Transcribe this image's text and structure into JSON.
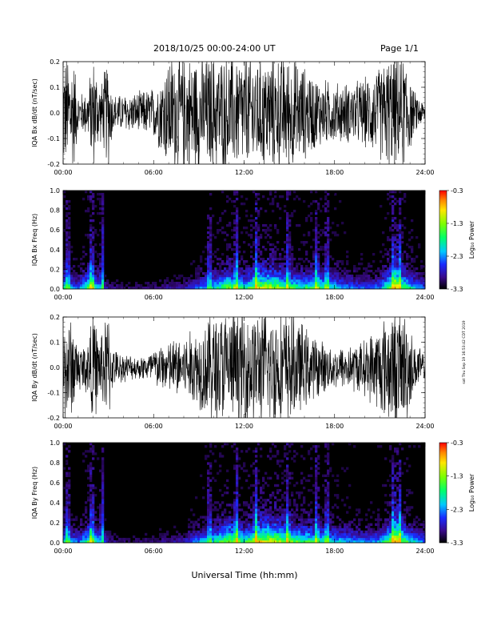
{
  "header": {
    "title": "2018/10/25  00:00-24:00 UT",
    "page": "Page 1/1"
  },
  "footer": {
    "xlabel": "Universal Time (hh:mm)",
    "stamp": "sat Thu Sep 19 16:53:42 CDT 2019"
  },
  "chart_data": [
    {
      "type": "line",
      "ylabel": "IQA Bx dB/dt (nT/sec)",
      "xlabel": "",
      "xlim_hours": [
        0,
        24
      ],
      "x_ticks": [
        "00:00",
        "06:00",
        "12:00",
        "18:00",
        "24:00"
      ],
      "ylim": [
        -0.2,
        0.2
      ],
      "y_ticks": [
        "0.2",
        "0.1",
        "0.0",
        "-0.1",
        "-0.2"
      ],
      "envelope": [
        {
          "hour": 0,
          "amp": 0.25
        },
        {
          "hour": 0.7,
          "amp": 0.25
        },
        {
          "hour": 1,
          "amp": 0.08
        },
        {
          "hour": 1.6,
          "amp": 0.1
        },
        {
          "hour": 2,
          "amp": 0.25
        },
        {
          "hour": 2.5,
          "amp": 0.12
        },
        {
          "hour": 3,
          "amp": 0.25
        },
        {
          "hour": 3.3,
          "amp": 0.08
        },
        {
          "hour": 4,
          "amp": 0.08
        },
        {
          "hour": 5,
          "amp": 0.09
        },
        {
          "hour": 5.5,
          "amp": 0.1
        },
        {
          "hour": 6,
          "amp": 0.11
        },
        {
          "hour": 6.5,
          "amp": 0.17
        },
        {
          "hour": 7,
          "amp": 0.25
        },
        {
          "hour": 8,
          "amp": 0.25
        },
        {
          "hour": 9,
          "amp": 0.25
        },
        {
          "hour": 10,
          "amp": 0.25
        },
        {
          "hour": 11,
          "amp": 0.25
        },
        {
          "hour": 12,
          "amp": 0.25
        },
        {
          "hour": 13,
          "amp": 0.25
        },
        {
          "hour": 14,
          "amp": 0.25
        },
        {
          "hour": 15,
          "amp": 0.25
        },
        {
          "hour": 16,
          "amp": 0.2
        },
        {
          "hour": 17,
          "amp": 0.15
        },
        {
          "hour": 18,
          "amp": 0.13
        },
        {
          "hour": 19,
          "amp": 0.13
        },
        {
          "hour": 20,
          "amp": 0.15
        },
        {
          "hour": 21,
          "amp": 0.2
        },
        {
          "hour": 21.6,
          "amp": 0.25
        },
        {
          "hour": 22.8,
          "amp": 0.25
        },
        {
          "hour": 23.2,
          "amp": 0.1
        },
        {
          "hour": 24,
          "amp": 0.04
        }
      ]
    },
    {
      "type": "heatmap",
      "ylabel": "IQA Bx Freq (Hz)",
      "xlim_hours": [
        0,
        24
      ],
      "x_ticks": [
        "00:00",
        "06:00",
        "12:00",
        "18:00",
        "24:00"
      ],
      "ylim": [
        0,
        1
      ],
      "y_ticks": [
        "1.0",
        "0.8",
        "0.6",
        "0.4",
        "0.2",
        "0.0"
      ],
      "colorbar": {
        "label": "Log₁₀ Power",
        "min": -3.3,
        "max": -0.3,
        "ticks": [
          "-0.3",
          "-1.3",
          "-2.3",
          "-3.3"
        ]
      },
      "activity": [
        {
          "hour": 0,
          "level": 0.55
        },
        {
          "hour": 1,
          "level": 0.3
        },
        {
          "hour": 1.8,
          "level": 0.7
        },
        {
          "hour": 2.5,
          "level": 0.35
        },
        {
          "hour": 3,
          "level": 0.15
        },
        {
          "hour": 4,
          "level": 0.1
        },
        {
          "hour": 5,
          "level": 0.1
        },
        {
          "hour": 6,
          "level": 0.12
        },
        {
          "hour": 7,
          "level": 0.15
        },
        {
          "hour": 8,
          "level": 0.15
        },
        {
          "hour": 9,
          "level": 0.35
        },
        {
          "hour": 10,
          "level": 0.45
        },
        {
          "hour": 11,
          "level": 0.7
        },
        {
          "hour": 12,
          "level": 0.5
        },
        {
          "hour": 13,
          "level": 0.75
        },
        {
          "hour": 14,
          "level": 0.75
        },
        {
          "hour": 15,
          "level": 0.6
        },
        {
          "hour": 16,
          "level": 0.55
        },
        {
          "hour": 17,
          "level": 0.6
        },
        {
          "hour": 18,
          "level": 0.45
        },
        {
          "hour": 19,
          "level": 0.35
        },
        {
          "hour": 20,
          "level": 0.3
        },
        {
          "hour": 21,
          "level": 0.35
        },
        {
          "hour": 22,
          "level": 0.85
        },
        {
          "hour": 23,
          "level": 0.5
        },
        {
          "hour": 24,
          "level": 0.3
        }
      ],
      "bursts_hours": [
        0.3,
        1.9,
        2.6,
        9.7,
        11.5,
        12.8,
        14.9,
        16.8,
        17.5,
        21.9,
        22.3
      ]
    },
    {
      "type": "line",
      "ylabel": "IQA By dB/dt (nT/sec)",
      "xlabel": "",
      "xlim_hours": [
        0,
        24
      ],
      "x_ticks": [
        "00:00",
        "06:00",
        "12:00",
        "18:00",
        "24:00"
      ],
      "ylim": [
        -0.2,
        0.2
      ],
      "y_ticks": [
        "0.2",
        "0.1",
        "0.0",
        "-0.1",
        "-0.2"
      ],
      "envelope": [
        {
          "hour": 0,
          "amp": 0.25
        },
        {
          "hour": 0.7,
          "amp": 0.2
        },
        {
          "hour": 1,
          "amp": 0.1
        },
        {
          "hour": 1.6,
          "amp": 0.12
        },
        {
          "hour": 2,
          "amp": 0.25
        },
        {
          "hour": 2.4,
          "amp": 0.14
        },
        {
          "hour": 3,
          "amp": 0.25
        },
        {
          "hour": 3.3,
          "amp": 0.08
        },
        {
          "hour": 4,
          "amp": 0.06
        },
        {
          "hour": 5,
          "amp": 0.05
        },
        {
          "hour": 5.5,
          "amp": 0.06
        },
        {
          "hour": 6,
          "amp": 0.09
        },
        {
          "hour": 6.5,
          "amp": 0.1
        },
        {
          "hour": 7,
          "amp": 0.12
        },
        {
          "hour": 8,
          "amp": 0.14
        },
        {
          "hour": 9,
          "amp": 0.18
        },
        {
          "hour": 10,
          "amp": 0.25
        },
        {
          "hour": 11,
          "amp": 0.25
        },
        {
          "hour": 12,
          "amp": 0.25
        },
        {
          "hour": 13,
          "amp": 0.25
        },
        {
          "hour": 14,
          "amp": 0.25
        },
        {
          "hour": 15,
          "amp": 0.25
        },
        {
          "hour": 16,
          "amp": 0.18
        },
        {
          "hour": 17,
          "amp": 0.12
        },
        {
          "hour": 18,
          "amp": 0.09
        },
        {
          "hour": 19,
          "amp": 0.1
        },
        {
          "hour": 20,
          "amp": 0.12
        },
        {
          "hour": 21,
          "amp": 0.2
        },
        {
          "hour": 21.6,
          "amp": 0.25
        },
        {
          "hour": 22.8,
          "amp": 0.25
        },
        {
          "hour": 23.2,
          "amp": 0.12
        },
        {
          "hour": 24,
          "amp": 0.06
        }
      ]
    },
    {
      "type": "heatmap",
      "ylabel": "IQA By Freq (Hz)",
      "xlim_hours": [
        0,
        24
      ],
      "x_ticks": [
        "00:00",
        "06:00",
        "12:00",
        "18:00",
        "24:00"
      ],
      "ylim": [
        0,
        1
      ],
      "y_ticks": [
        "1.0",
        "0.8",
        "0.6",
        "0.4",
        "0.2",
        "0.0"
      ],
      "colorbar": {
        "label": "Log₁₀ Power",
        "min": -3.3,
        "max": -0.3,
        "ticks": [
          "-0.3",
          "-1.3",
          "-2.3",
          "-3.3"
        ]
      },
      "activity": [
        {
          "hour": 0,
          "level": 0.5
        },
        {
          "hour": 1,
          "level": 0.3
        },
        {
          "hour": 1.8,
          "level": 0.65
        },
        {
          "hour": 2.5,
          "level": 0.35
        },
        {
          "hour": 3,
          "level": 0.15
        },
        {
          "hour": 4,
          "level": 0.1
        },
        {
          "hour": 5,
          "level": 0.1
        },
        {
          "hour": 6,
          "level": 0.12
        },
        {
          "hour": 7,
          "level": 0.15
        },
        {
          "hour": 8,
          "level": 0.2
        },
        {
          "hour": 9,
          "level": 0.4
        },
        {
          "hour": 10,
          "level": 0.5
        },
        {
          "hour": 11,
          "level": 0.75
        },
        {
          "hour": 12,
          "level": 0.55
        },
        {
          "hour": 13,
          "level": 0.8
        },
        {
          "hour": 14,
          "level": 0.8
        },
        {
          "hour": 15,
          "level": 0.65
        },
        {
          "hour": 16,
          "level": 0.6
        },
        {
          "hour": 17,
          "level": 0.55
        },
        {
          "hour": 18,
          "level": 0.45
        },
        {
          "hour": 19,
          "level": 0.4
        },
        {
          "hour": 20,
          "level": 0.35
        },
        {
          "hour": 21,
          "level": 0.4
        },
        {
          "hour": 22,
          "level": 0.85
        },
        {
          "hour": 23,
          "level": 0.5
        },
        {
          "hour": 24,
          "level": 0.3
        }
      ],
      "bursts_hours": [
        0.3,
        1.9,
        2.6,
        9.7,
        11.5,
        12.8,
        14.9,
        16.8,
        17.5,
        21.9,
        22.3
      ]
    }
  ]
}
